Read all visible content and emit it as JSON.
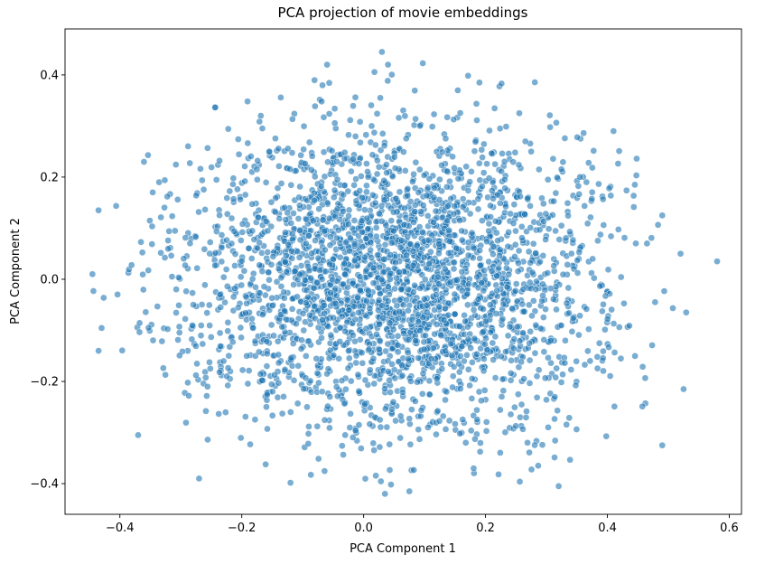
{
  "chart_data": {
    "type": "scatter",
    "title": "PCA projection of movie embeddings",
    "xlabel": "PCA Component 1",
    "ylabel": "PCA Component 2",
    "xlim": [
      -0.49,
      0.62
    ],
    "ylim": [
      -0.46,
      0.49
    ],
    "xticks": [
      -0.4,
      -0.2,
      0.0,
      0.2,
      0.4,
      0.6
    ],
    "xtick_labels": [
      "−0.4",
      "−0.2",
      "0.0",
      "0.2",
      "0.4",
      "0.6"
    ],
    "yticks": [
      -0.4,
      -0.2,
      0.0,
      0.2,
      0.4
    ],
    "ytick_labels": [
      "−0.4",
      "−0.2",
      "0.0",
      "0.2",
      "0.4"
    ],
    "grid": false,
    "legend": null,
    "point_color": "#1f77b4",
    "point_alpha": 0.6,
    "point_edge_color": "#ffffff",
    "cloud": {
      "n_points": 3000,
      "center": [
        0.05,
        0.0
      ],
      "std": [
        0.17,
        0.15
      ]
    },
    "notable_points": [
      {
        "x": 0.58,
        "y": 0.035
      },
      {
        "x": 0.525,
        "y": -0.215
      },
      {
        "x": 0.49,
        "y": -0.325
      },
      {
        "x": 0.49,
        "y": 0.125
      },
      {
        "x": 0.52,
        "y": 0.05
      },
      {
        "x": 0.465,
        "y": 0.07
      },
      {
        "x": -0.445,
        "y": 0.01
      },
      {
        "x": -0.435,
        "y": -0.14
      },
      {
        "x": -0.435,
        "y": 0.135
      },
      {
        "x": -0.37,
        "y": -0.305
      },
      {
        "x": 0.03,
        "y": 0.445
      },
      {
        "x": 0.04,
        "y": 0.42
      },
      {
        "x": -0.06,
        "y": 0.42
      },
      {
        "x": 0.035,
        "y": -0.42
      },
      {
        "x": 0.075,
        "y": -0.415
      },
      {
        "x": 0.32,
        "y": -0.405
      },
      {
        "x": -0.27,
        "y": -0.39
      },
      {
        "x": 0.19,
        "y": 0.385
      },
      {
        "x": 0.41,
        "y": 0.29
      },
      {
        "x": 0.445,
        "y": 0.185
      }
    ]
  }
}
